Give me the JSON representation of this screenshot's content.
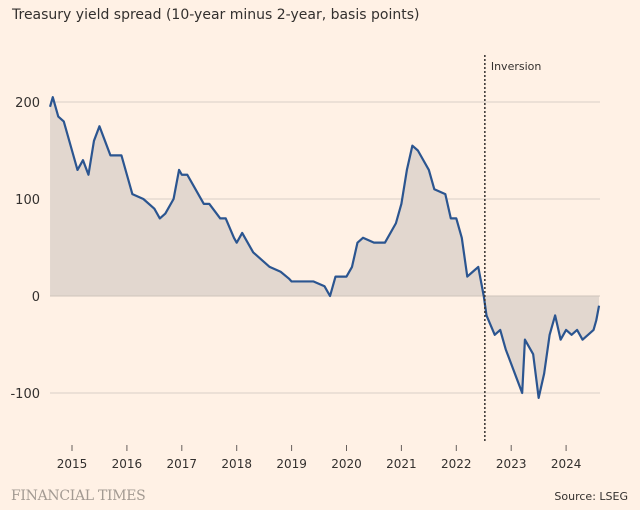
{
  "chart_data": {
    "type": "area",
    "title": "Treasury yield spread (10-year minus 2-year, basis points)",
    "xlabel": "",
    "ylabel": "",
    "xlim": [
      2014.6,
      2024.65
    ],
    "ylim": [
      -150,
      200
    ],
    "yticks": [
      200,
      100,
      0,
      -100
    ],
    "xticks": [
      "2015",
      "2016",
      "2017",
      "2018",
      "2019",
      "2020",
      "2021",
      "2022",
      "2023",
      "2024"
    ],
    "grid": true,
    "annotation": {
      "label": "Inversion",
      "x": 2022.52
    },
    "series": [
      {
        "name": "10y-2y spread",
        "color": "#2b5590",
        "x": [
          2014.6,
          2014.65,
          2014.75,
          2014.85,
          2015.0,
          2015.1,
          2015.2,
          2015.3,
          2015.4,
          2015.5,
          2015.6,
          2015.7,
          2015.9,
          2016.0,
          2016.1,
          2016.3,
          2016.5,
          2016.6,
          2016.7,
          2016.85,
          2016.95,
          2017.0,
          2017.1,
          2017.2,
          2017.4,
          2017.5,
          2017.7,
          2017.8,
          2017.95,
          2018.0,
          2018.1,
          2018.3,
          2018.5,
          2018.6,
          2018.8,
          2018.95,
          2019.0,
          2019.2,
          2019.4,
          2019.6,
          2019.7,
          2019.8,
          2019.9,
          2020.0,
          2020.1,
          2020.2,
          2020.3,
          2020.5,
          2020.7,
          2020.9,
          2021.0,
          2021.1,
          2021.2,
          2021.3,
          2021.5,
          2021.6,
          2021.8,
          2021.9,
          2022.0,
          2022.1,
          2022.2,
          2022.3,
          2022.4,
          2022.5,
          2022.55,
          2022.7,
          2022.8,
          2022.9,
          2023.0,
          2023.1,
          2023.2,
          2023.25,
          2023.4,
          2023.5,
          2023.6,
          2023.7,
          2023.8,
          2023.9,
          2024.0,
          2024.1,
          2024.2,
          2024.3,
          2024.4,
          2024.5,
          2024.55,
          2024.6
        ],
        "y": [
          195,
          205,
          185,
          180,
          150,
          130,
          140,
          125,
          160,
          175,
          160,
          145,
          145,
          125,
          105,
          100,
          90,
          80,
          85,
          100,
          130,
          125,
          125,
          115,
          95,
          95,
          80,
          80,
          60,
          55,
          65,
          45,
          35,
          30,
          25,
          18,
          15,
          15,
          15,
          10,
          0,
          20,
          20,
          20,
          30,
          55,
          60,
          55,
          55,
          75,
          95,
          130,
          155,
          150,
          130,
          110,
          105,
          80,
          80,
          60,
          20,
          25,
          30,
          0,
          -20,
          -40,
          -35,
          -55,
          -70,
          -85,
          -100,
          -45,
          -60,
          -105,
          -80,
          -40,
          -20,
          -45,
          -35,
          -40,
          -35,
          -45,
          -40,
          -35,
          -25,
          -10
        ]
      }
    ]
  },
  "footer": {
    "brand": "FINANCIAL TIMES",
    "source": "Source: LSEG"
  }
}
